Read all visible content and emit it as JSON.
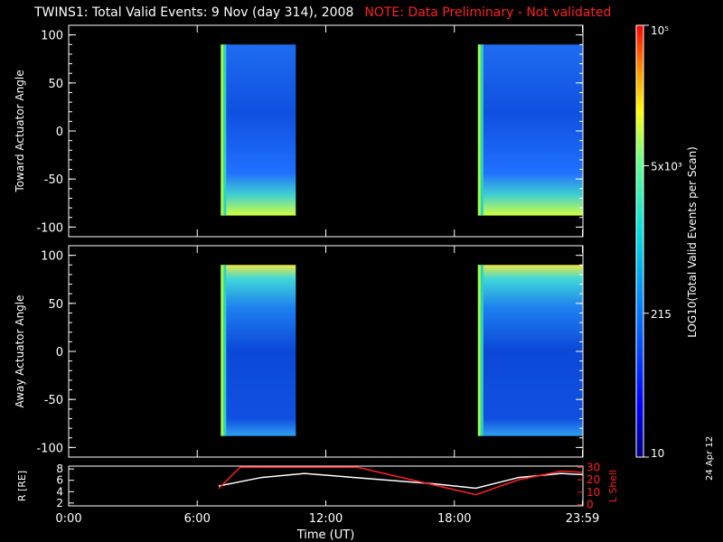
{
  "title": "TWINS1: Total Valid Events:  9 Nov (day 314), 2008",
  "note": "NOTE: Data Preliminary - Not validated",
  "date_stamp": "24 Apr 12",
  "colors": {
    "background": "#000000",
    "axis": "#ffffff",
    "note": "#ff2020",
    "r_line": "#ffffff",
    "l_shell_line": "#ff2020"
  },
  "chart_data": [
    {
      "type": "heatmap",
      "panel": "toward",
      "ylabel": "Toward Actuator Angle",
      "ylim": [
        -110,
        110
      ],
      "yticks": [
        100,
        50,
        0,
        -50,
        -100
      ],
      "xlim": [
        0,
        24
      ],
      "data_blocks": [
        {
          "t_start": 7.1,
          "t_end": 10.6,
          "angle_min": -88,
          "angle_max": 90
        },
        {
          "t_start": 19.1,
          "t_end": 24.0,
          "angle_min": -88,
          "angle_max": 90
        }
      ],
      "grid": false
    },
    {
      "type": "heatmap",
      "panel": "away",
      "ylabel": "Away Actuator Angle",
      "ylim": [
        -110,
        110
      ],
      "yticks": [
        100,
        50,
        0,
        -50,
        -100
      ],
      "xlim": [
        0,
        24
      ],
      "data_blocks": [
        {
          "t_start": 7.1,
          "t_end": 10.6,
          "angle_min": -88,
          "angle_max": 90
        },
        {
          "t_start": 19.1,
          "t_end": 24.0,
          "angle_min": -88,
          "angle_max": 90
        }
      ],
      "grid": false
    },
    {
      "type": "line",
      "panel": "ephemeris",
      "xlabel": "Time (UT)",
      "xtick_labels": [
        "0:00",
        "6:00",
        "12:00",
        "18:00",
        "23:59"
      ],
      "xtick_values": [
        0,
        6,
        12,
        18,
        23.98
      ],
      "ylabel_left": "R [RE]",
      "ylabel_right": "L Shell",
      "yticks_left": [
        8,
        6,
        4,
        2
      ],
      "ylim_left": [
        1.5,
        8.5
      ],
      "yticks_right": [
        30,
        20,
        10,
        0
      ],
      "ylim_right": [
        -1,
        31
      ],
      "series": [
        {
          "axis": "left",
          "x": [
            7,
            9,
            11,
            13,
            15,
            17,
            19,
            21,
            23,
            24
          ],
          "y": [
            5.0,
            6.5,
            7.2,
            6.6,
            6.0,
            5.4,
            4.6,
            6.5,
            7.2,
            7.0
          ]
        },
        {
          "axis": "right",
          "x": [
            7,
            8.0,
            13.5,
            19,
            21,
            23,
            24
          ],
          "y": [
            13,
            30,
            30,
            8,
            20,
            27,
            26
          ]
        }
      ]
    }
  ],
  "colorbar": {
    "label": "LOG10(Total Valid Events per Scan)",
    "tick_labels": [
      "10⁵",
      "5x10³",
      "215",
      "10"
    ],
    "tick_values": [
      100000,
      5000,
      215,
      10
    ],
    "scale": "log",
    "range": [
      10,
      100000
    ]
  }
}
